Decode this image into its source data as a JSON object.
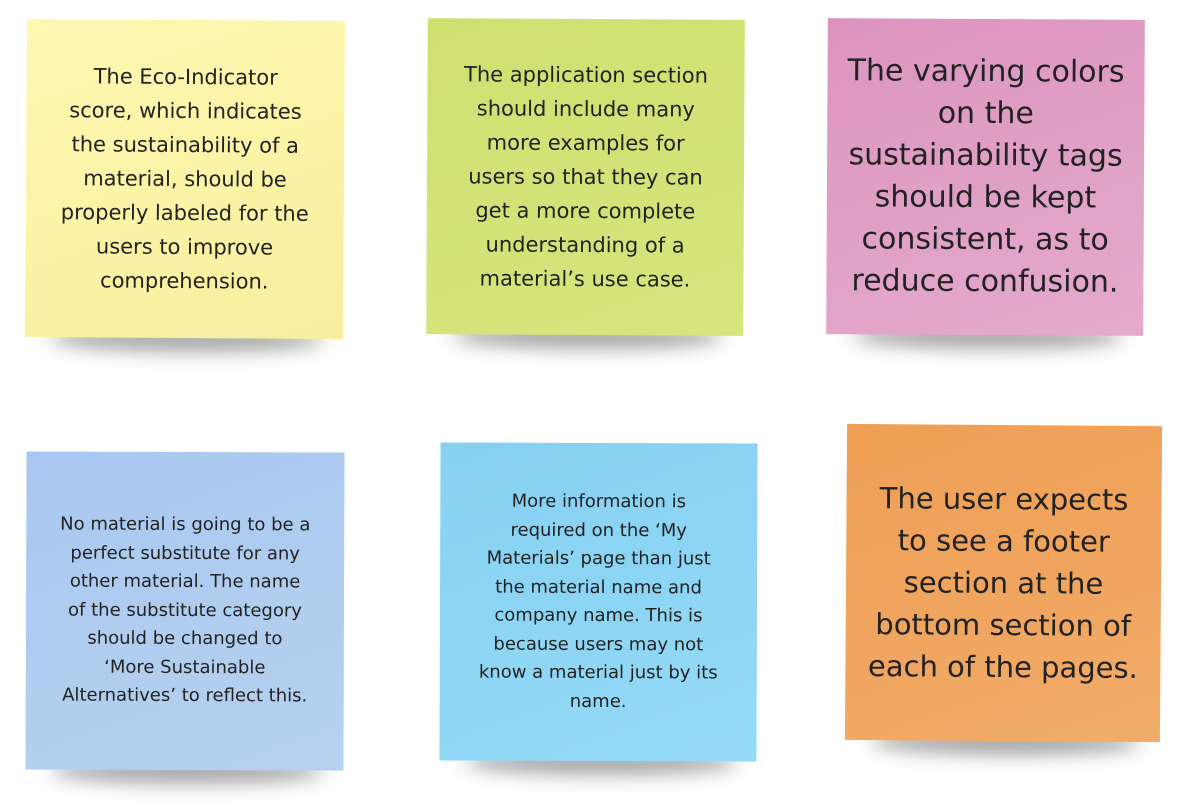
{
  "notes": [
    {
      "text": "The Eco-Indicator\nscore, which indicates\nthe sustainability of a\nmaterial, should be\nproperly labeled for the\nusers to improve\ncomprehension.",
      "color": "#fbf3a4"
    },
    {
      "text": "The application section\nshould include many\nmore examples for\nusers so that they can\nget a more complete\nunderstanding of a\nmaterial’s use case.",
      "color": "#d3e378"
    },
    {
      "text": "The varying colors\non the\nsustainability tags\nshould be kept\nconsistent, as to\nreduce confusion.",
      "color": "#e1a2c7"
    },
    {
      "text": "No material is going to be a\nperfect substitute for any\nother material. The name\nof the substitute category\nshould be changed to\n‘More Sustainable\nAlternatives’ to reflect this.",
      "color": "#b1ceef"
    },
    {
      "text": "More information is\nrequired on the ‘My\nMaterials’ page than just\nthe material name and\ncompany name. This is\nbecause users may not\nknow a material just by its\nname.",
      "color": "#8ed6f4"
    },
    {
      "text": "The user expects\nto see a footer\nsection at the\nbottom section of\neach of the pages.",
      "color": "#f0a660"
    }
  ]
}
